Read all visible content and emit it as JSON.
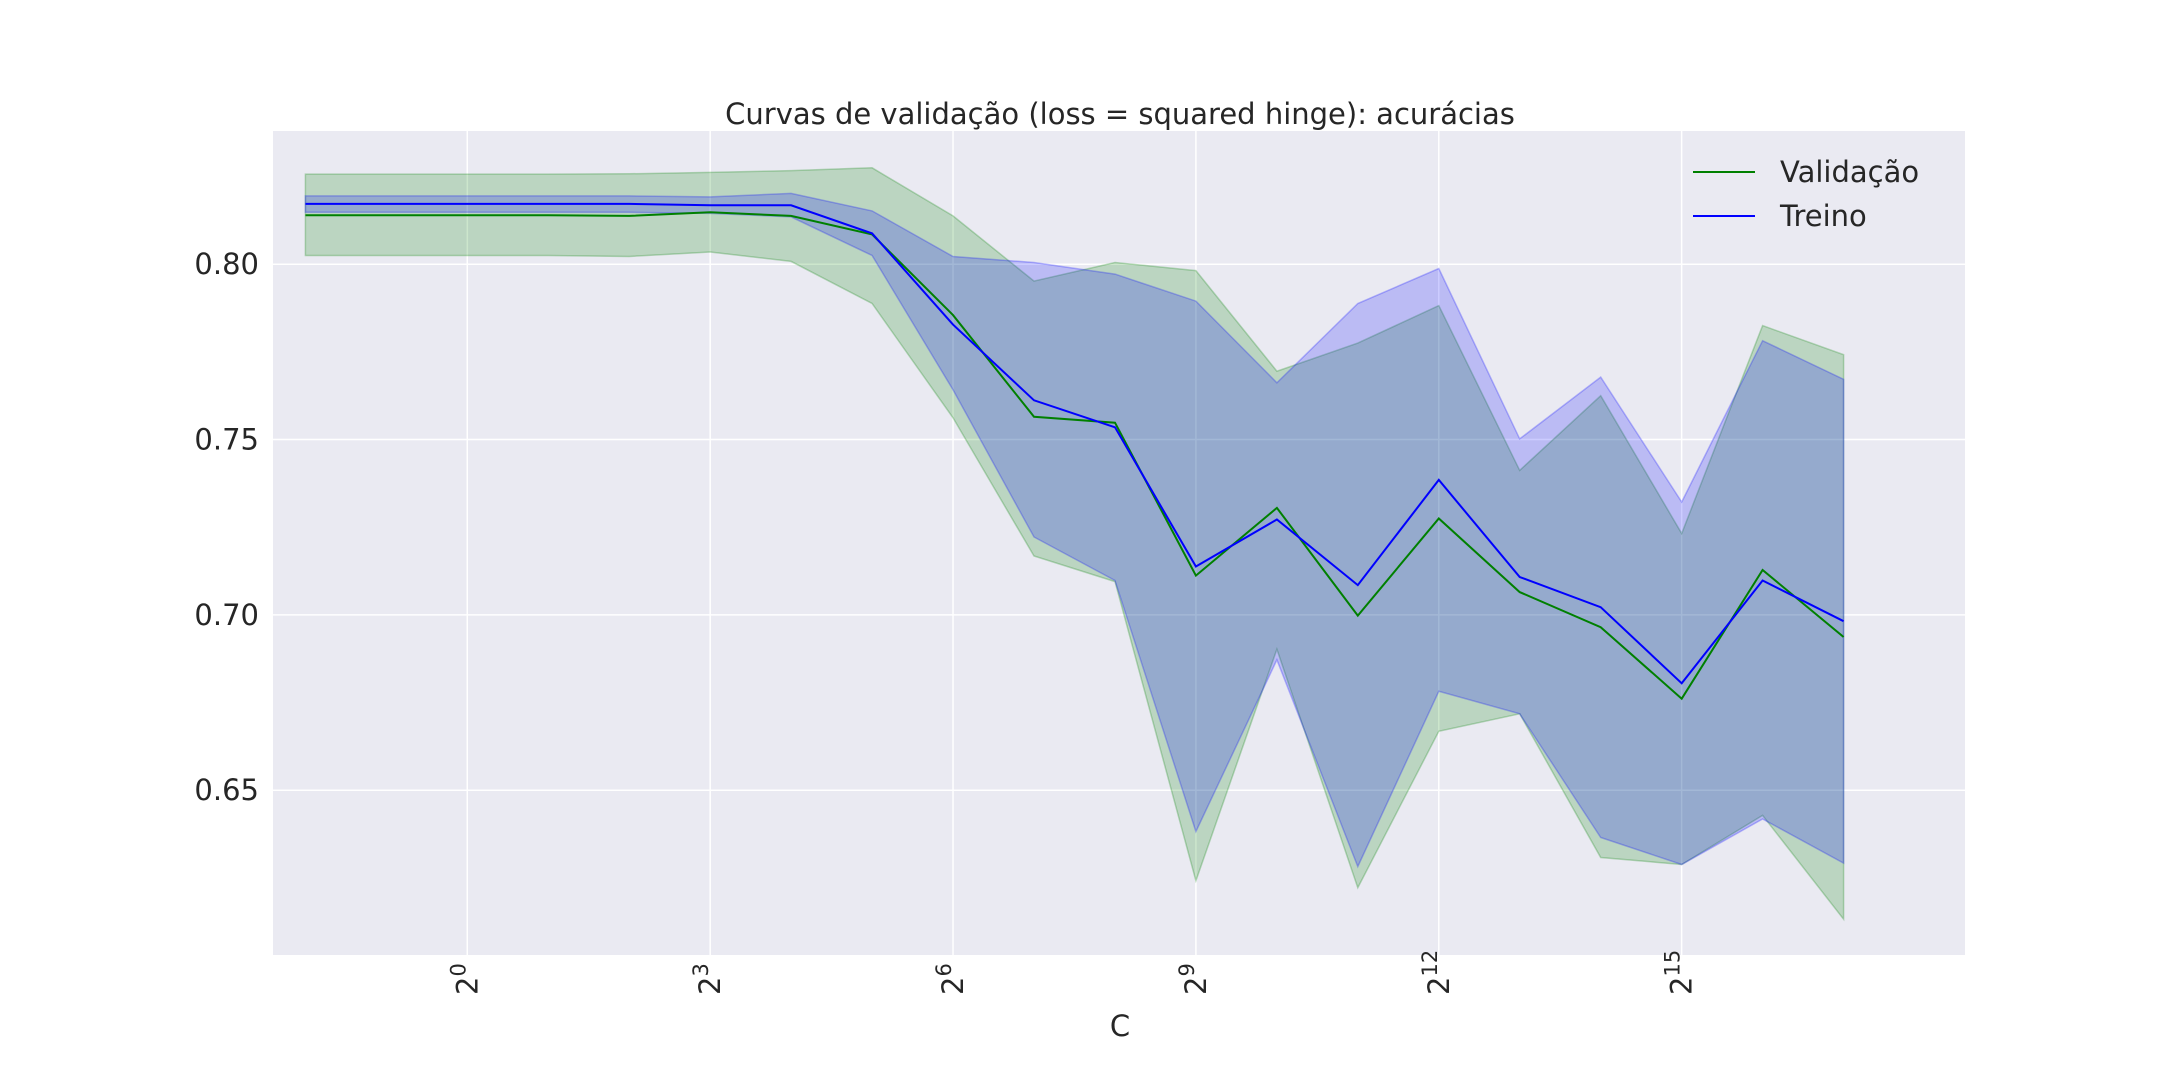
{
  "chart_data": {
    "type": "line",
    "title": "Curvas de validação (loss = squared hinge): acurácias",
    "xlabel": "C",
    "ylabel": "",
    "x_scale": "log2",
    "x": [
      -2,
      -1,
      0,
      1,
      2,
      3,
      4,
      5,
      6,
      7,
      8,
      9,
      10,
      11,
      12,
      13,
      14,
      15,
      16,
      17
    ],
    "xticks": [
      {
        "exp": "0"
      },
      {
        "exp": "3"
      },
      {
        "exp": "6"
      },
      {
        "exp": "9"
      },
      {
        "exp": "12"
      },
      {
        "exp": "15"
      }
    ],
    "xtick_base": "2",
    "xlim": [
      -2.4,
      18.5
    ],
    "ylim": [
      0.603,
      0.838
    ],
    "yticks": [
      "0.65",
      "0.70",
      "0.75",
      "0.80"
    ],
    "grid": true,
    "legend_position": "top-right",
    "background": "#eaeaf2",
    "series": [
      {
        "name": "Validação",
        "color": "#008000",
        "values": [
          0.814,
          0.814,
          0.814,
          0.814,
          0.8138,
          0.8148,
          0.8138,
          0.8085,
          0.7855,
          0.7565,
          0.7548,
          0.7112,
          0.7305,
          0.6998,
          0.7275,
          0.7065,
          0.6965,
          0.6761,
          0.7128,
          0.6937
        ],
        "upper": [
          0.8257,
          0.8257,
          0.8257,
          0.8257,
          0.8258,
          0.8262,
          0.8267,
          0.8275,
          0.8138,
          0.7952,
          0.8005,
          0.7982,
          0.7695,
          0.7775,
          0.7882,
          0.7412,
          0.7625,
          0.7232,
          0.7825,
          0.7742
        ],
        "lower": [
          0.8025,
          0.8025,
          0.8025,
          0.8025,
          0.8022,
          0.8035,
          0.8008,
          0.7888,
          0.7562,
          0.7168,
          0.7095,
          0.6242,
          0.6902,
          0.6222,
          0.6668,
          0.6718,
          0.6308,
          0.6288,
          0.6428,
          0.6132
        ]
      },
      {
        "name": "Treino",
        "color": "#0000ff",
        "values": [
          0.8172,
          0.8172,
          0.8172,
          0.8172,
          0.8172,
          0.8168,
          0.8168,
          0.8088,
          0.7828,
          0.7612,
          0.7535,
          0.7138,
          0.7272,
          0.7085,
          0.7385,
          0.7108,
          0.7022,
          0.6805,
          0.7098,
          0.6982
        ],
        "upper": [
          0.8195,
          0.8195,
          0.8195,
          0.8195,
          0.8195,
          0.8192,
          0.8202,
          0.8152,
          0.8022,
          0.8005,
          0.7972,
          0.7895,
          0.7662,
          0.7888,
          0.7988,
          0.7502,
          0.7678,
          0.7322,
          0.7782,
          0.7672
        ],
        "lower": [
          0.8148,
          0.8148,
          0.8148,
          0.8148,
          0.8148,
          0.8145,
          0.8135,
          0.8025,
          0.7642,
          0.7222,
          0.7098,
          0.6382,
          0.6872,
          0.6282,
          0.6782,
          0.6718,
          0.6365,
          0.6288,
          0.6418,
          0.6292
        ]
      }
    ]
  }
}
